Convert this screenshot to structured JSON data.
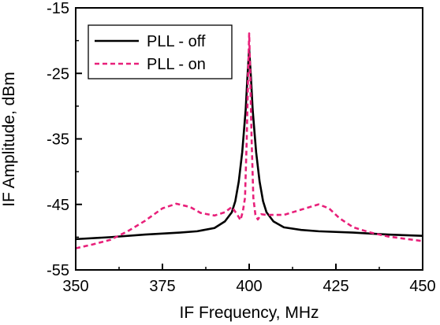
{
  "chart_data": {
    "type": "line",
    "title": "",
    "xlabel": "IF Frequency, MHz",
    "ylabel": "IF Amplitude, dBm",
    "xlim": [
      350,
      450
    ],
    "ylim": [
      -55,
      -15
    ],
    "x_ticks": [
      350,
      375,
      400,
      425,
      450
    ],
    "y_ticks": [
      -55,
      -45,
      -35,
      -25,
      -15
    ],
    "x_tick_labels": [
      "350",
      "375",
      "400",
      "425",
      "450"
    ],
    "y_tick_labels": [
      "-55",
      "-45",
      "-35",
      "-25",
      "-15"
    ],
    "grid": false,
    "legend": {
      "position": "top-left",
      "entries": [
        "PLL - off",
        "PLL - on"
      ]
    },
    "series": [
      {
        "name": "PLL - off",
        "color": "#000000",
        "style": "solid",
        "points": [
          [
            350,
            -50.3
          ],
          [
            360,
            -50.0
          ],
          [
            370,
            -49.6
          ],
          [
            380,
            -49.3
          ],
          [
            385,
            -49.1
          ],
          [
            390,
            -48.6
          ],
          [
            393,
            -47.6
          ],
          [
            395,
            -46.2
          ],
          [
            396,
            -44.5
          ],
          [
            397,
            -41.5
          ],
          [
            398,
            -37.0
          ],
          [
            399,
            -30.5
          ],
          [
            399.5,
            -25.5
          ],
          [
            400,
            -21.3
          ],
          [
            400.5,
            -25.5
          ],
          [
            401,
            -30.5
          ],
          [
            402,
            -37.0
          ],
          [
            403,
            -41.5
          ],
          [
            404,
            -44.5
          ],
          [
            405,
            -46.2
          ],
          [
            407,
            -47.6
          ],
          [
            410,
            -48.5
          ],
          [
            415,
            -48.9
          ],
          [
            420,
            -49.1
          ],
          [
            430,
            -49.3
          ],
          [
            440,
            -49.6
          ],
          [
            450,
            -49.8
          ]
        ]
      },
      {
        "name": "PLL - on",
        "color": "#E8207A",
        "style": "dashed",
        "points": [
          [
            350,
            -51.7
          ],
          [
            355,
            -51.1
          ],
          [
            360,
            -50.4
          ],
          [
            365,
            -49.1
          ],
          [
            370,
            -47.5
          ],
          [
            375,
            -45.6
          ],
          [
            379,
            -44.9
          ],
          [
            383,
            -45.4
          ],
          [
            386,
            -46.3
          ],
          [
            390,
            -46.7
          ],
          [
            393,
            -46.2
          ],
          [
            395,
            -45.4
          ],
          [
            396.5,
            -46.5
          ],
          [
            397.5,
            -47.4
          ],
          [
            398.2,
            -46.0
          ],
          [
            398.8,
            -44.0
          ],
          [
            399.3,
            -35.0
          ],
          [
            399.7,
            -25.0
          ],
          [
            400,
            -18.9
          ],
          [
            400.3,
            -25.0
          ],
          [
            400.7,
            -35.0
          ],
          [
            401.2,
            -44.0
          ],
          [
            401.8,
            -46.6
          ],
          [
            402.5,
            -47.3
          ],
          [
            403.5,
            -46.5
          ],
          [
            405,
            -46.6
          ],
          [
            410,
            -46.6
          ],
          [
            415,
            -45.8
          ],
          [
            420,
            -45.0
          ],
          [
            423,
            -45.6
          ],
          [
            426,
            -47.1
          ],
          [
            430,
            -48.5
          ],
          [
            435,
            -49.3
          ],
          [
            440,
            -49.9
          ],
          [
            450,
            -50.6
          ]
        ]
      }
    ]
  }
}
